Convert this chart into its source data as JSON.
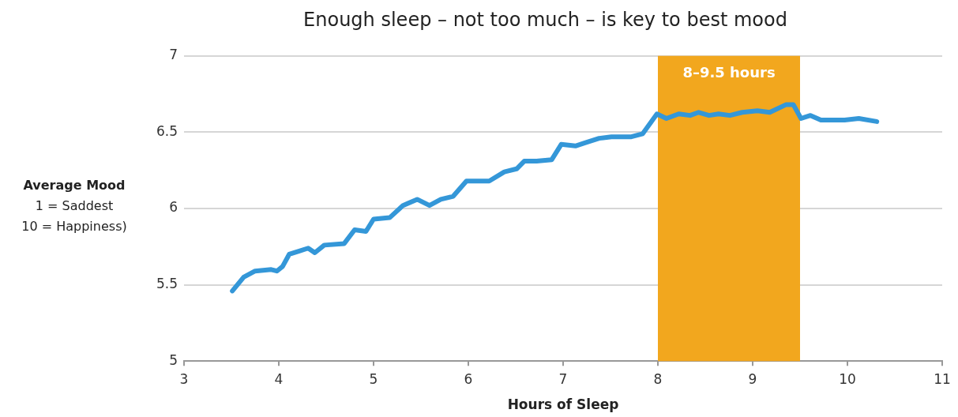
{
  "chart_data": {
    "type": "line",
    "title": "Enough sleep – not too much – is key to best mood",
    "xlabel": "Hours of Sleep",
    "ylabel": "Average Mood\n1 = Saddest\n10 = Happiness)",
    "xlim": [
      3,
      11
    ],
    "xticks": [
      3,
      4,
      5,
      6,
      7,
      8,
      9,
      10,
      11
    ],
    "ylim": [
      5,
      7
    ],
    "yticks": [
      5,
      5.5,
      6,
      6.5,
      7
    ],
    "grid": "y",
    "legend": false,
    "marker": "none",
    "line_style": "solid",
    "bands": [
      {
        "axis": "x",
        "from": 8,
        "to": 9.5,
        "label": "8–9.5 hours",
        "color": "#f2a71e"
      }
    ],
    "series": [
      {
        "color": "#3497d8",
        "x": [
          3.51,
          3.63,
          3.75,
          3.92,
          3.98,
          4.04,
          4.11,
          4.21,
          4.31,
          4.38,
          4.48,
          4.69,
          4.8,
          4.92,
          5.0,
          5.17,
          5.31,
          5.46,
          5.59,
          5.71,
          5.84,
          5.98,
          6.07,
          6.22,
          6.38,
          6.51,
          6.59,
          6.72,
          6.88,
          6.98,
          7.13,
          7.23,
          7.38,
          7.51,
          7.72,
          7.84,
          7.99,
          8.09,
          8.22,
          8.34,
          8.43,
          8.54,
          8.64,
          8.76,
          8.89,
          9.05,
          9.18,
          9.35,
          9.43,
          9.51,
          9.61,
          9.72,
          9.97,
          10.12,
          10.31
        ],
        "values": [
          5.46,
          5.55,
          5.59,
          5.6,
          5.59,
          5.62,
          5.7,
          5.72,
          5.74,
          5.71,
          5.76,
          5.77,
          5.86,
          5.85,
          5.93,
          5.94,
          6.02,
          6.06,
          6.02,
          6.06,
          6.08,
          6.18,
          6.18,
          6.18,
          6.24,
          6.26,
          6.31,
          6.31,
          6.32,
          6.42,
          6.41,
          6.43,
          6.46,
          6.47,
          6.47,
          6.49,
          6.62,
          6.59,
          6.62,
          6.61,
          6.63,
          6.61,
          6.62,
          6.61,
          6.63,
          6.64,
          6.63,
          6.68,
          6.68,
          6.59,
          6.61,
          6.58,
          6.58,
          6.59,
          6.57
        ]
      }
    ]
  }
}
